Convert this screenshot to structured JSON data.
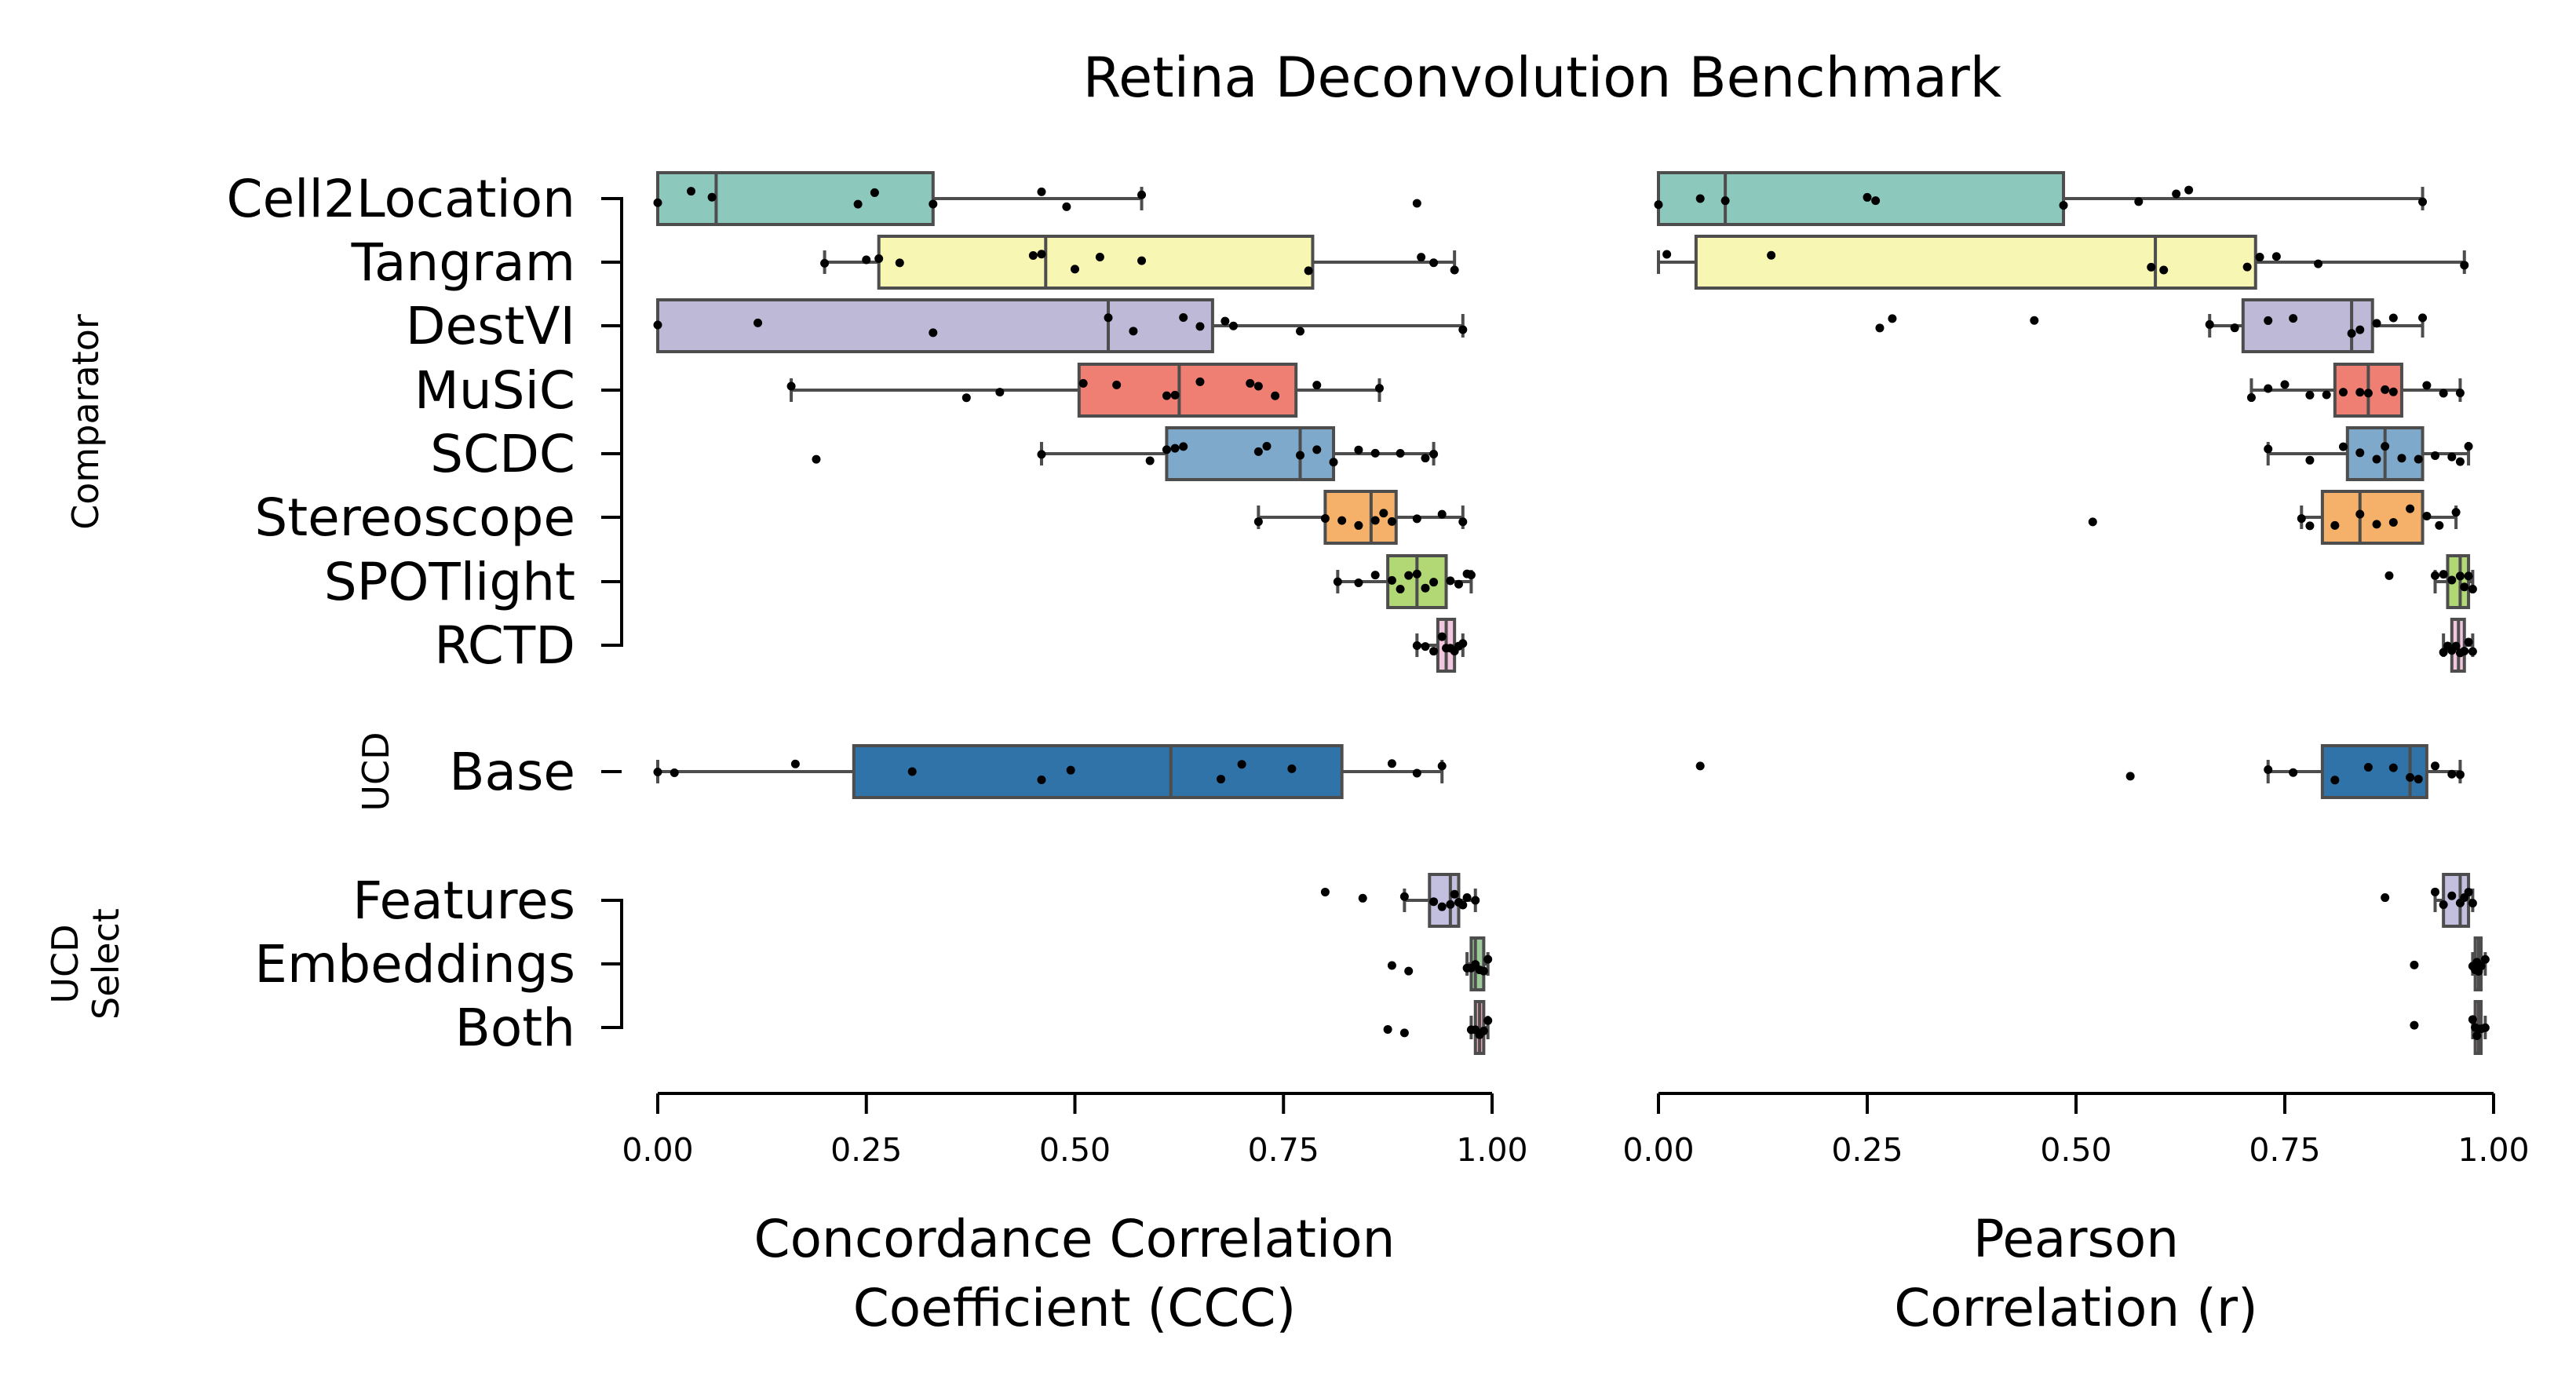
{
  "chart_data": {
    "type": "boxplot",
    "title": "Retina Deconvolution Benchmark",
    "categories": [
      "Cell2Location",
      "Tangram",
      "DestVI",
      "MuSiC",
      "SCDC",
      "Stereoscope",
      "SPOTlight",
      "RCTD",
      "Base",
      "Features",
      "Embeddings",
      "Both"
    ],
    "groups": [
      {
        "label": "Comparator",
        "members": [
          "Cell2Location",
          "Tangram",
          "DestVI",
          "MuSiC",
          "SCDC",
          "Stereoscope",
          "SPOTlight",
          "RCTD"
        ]
      },
      {
        "label": "UCD",
        "members": [
          "Base"
        ]
      },
      {
        "label": "UCD\nSelect",
        "members": [
          "Features",
          "Embeddings",
          "Both"
        ]
      }
    ],
    "colors": {
      "Cell2Location": "#8dc8bc",
      "Tangram": "#f7f6b2",
      "DestVI": "#bdb9d6",
      "MuSiC": "#ef7f73",
      "SCDC": "#7fa9cb",
      "Stereoscope": "#f5b16a",
      "SPOTlight": "#b1d874",
      "RCTD": "#f2c6de",
      "Base": "#2f73a9",
      "Features": "#c3c0df",
      "Embeddings": "#9dc89a",
      "Both": "#f0a9b8"
    },
    "panels": [
      {
        "xlabel": "Concordance Correlation\nCoefficient (CCC)",
        "xlim": [
          0,
          1
        ],
        "xticks": [
          "0.00",
          "0.25",
          "0.50",
          "0.75",
          "1.00"
        ],
        "boxes": [
          {
            "category": "Cell2Location",
            "whislo": 0.0,
            "q1": 0.0,
            "med": 0.07,
            "q3": 0.33,
            "whishi": 0.58,
            "points": [
              0.0,
              0.04,
              0.065,
              0.24,
              0.26,
              0.33,
              0.46,
              0.49,
              0.58,
              0.91
            ]
          },
          {
            "category": "Tangram",
            "whislo": 0.2,
            "q1": 0.265,
            "med": 0.465,
            "q3": 0.785,
            "whishi": 0.955,
            "points": [
              0.2,
              0.25,
              0.265,
              0.29,
              0.45,
              0.46,
              0.5,
              0.53,
              0.58,
              0.78,
              0.915,
              0.93,
              0.955
            ]
          },
          {
            "category": "DestVI",
            "whislo": 0.0,
            "q1": 0.0,
            "med": 0.54,
            "q3": 0.665,
            "whishi": 0.965,
            "points": [
              0.0,
              0.12,
              0.33,
              0.54,
              0.57,
              0.63,
              0.65,
              0.68,
              0.69,
              0.77,
              0.965
            ]
          },
          {
            "category": "MuSiC",
            "whislo": 0.16,
            "q1": 0.505,
            "med": 0.625,
            "q3": 0.765,
            "whishi": 0.865,
            "points": [
              0.16,
              0.37,
              0.41,
              0.51,
              0.55,
              0.61,
              0.62,
              0.65,
              0.71,
              0.72,
              0.74,
              0.79,
              0.865
            ]
          },
          {
            "category": "SCDC",
            "whislo": 0.46,
            "q1": 0.61,
            "med": 0.77,
            "q3": 0.81,
            "whishi": 0.93,
            "points": [
              0.19,
              0.46,
              0.59,
              0.61,
              0.62,
              0.63,
              0.72,
              0.73,
              0.77,
              0.79,
              0.81,
              0.84,
              0.86,
              0.89,
              0.92,
              0.93
            ]
          },
          {
            "category": "Stereoscope",
            "whislo": 0.72,
            "q1": 0.8,
            "med": 0.855,
            "q3": 0.885,
            "whishi": 0.965,
            "points": [
              0.72,
              0.8,
              0.82,
              0.84,
              0.86,
              0.87,
              0.88,
              0.91,
              0.94,
              0.965
            ]
          },
          {
            "category": "SPOTlight",
            "whislo": 0.815,
            "q1": 0.875,
            "med": 0.91,
            "q3": 0.945,
            "whishi": 0.975,
            "points": [
              0.815,
              0.84,
              0.86,
              0.88,
              0.89,
              0.9,
              0.91,
              0.92,
              0.93,
              0.95,
              0.96,
              0.97,
              0.975
            ]
          },
          {
            "category": "RCTD",
            "whislo": 0.91,
            "q1": 0.935,
            "med": 0.945,
            "q3": 0.955,
            "whishi": 0.965,
            "points": [
              0.91,
              0.92,
              0.93,
              0.94,
              0.945,
              0.95,
              0.955,
              0.96,
              0.965
            ]
          },
          {
            "category": "Base",
            "whislo": 0.0,
            "q1": 0.235,
            "med": 0.615,
            "q3": 0.82,
            "whishi": 0.94,
            "points": [
              0.0,
              0.02,
              0.165,
              0.305,
              0.46,
              0.495,
              0.675,
              0.7,
              0.76,
              0.88,
              0.91,
              0.94
            ]
          },
          {
            "category": "Features",
            "whislo": 0.895,
            "q1": 0.925,
            "med": 0.95,
            "q3": 0.96,
            "whishi": 0.98,
            "points": [
              0.8,
              0.845,
              0.895,
              0.93,
              0.94,
              0.95,
              0.955,
              0.96,
              0.965,
              0.97,
              0.98
            ]
          },
          {
            "category": "Embeddings",
            "whislo": 0.97,
            "q1": 0.975,
            "med": 0.98,
            "q3": 0.99,
            "whishi": 0.995,
            "points": [
              0.88,
              0.9,
              0.97,
              0.975,
              0.98,
              0.985,
              0.99,
              0.995
            ]
          },
          {
            "category": "Both",
            "whislo": 0.975,
            "q1": 0.98,
            "med": 0.985,
            "q3": 0.99,
            "whishi": 0.995,
            "points": [
              0.875,
              0.895,
              0.975,
              0.98,
              0.985,
              0.99,
              0.995
            ]
          }
        ]
      },
      {
        "xlabel": "Pearson\nCorrelation (r)",
        "xlim": [
          0,
          1
        ],
        "xticks": [
          "0.00",
          "0.25",
          "0.50",
          "0.75",
          "1.00"
        ],
        "boxes": [
          {
            "category": "Cell2Location",
            "whislo": 0.0,
            "q1": 0.0,
            "med": 0.08,
            "q3": 0.485,
            "whishi": 0.915,
            "points": [
              0.0,
              0.05,
              0.08,
              0.25,
              0.26,
              0.485,
              0.575,
              0.62,
              0.635,
              0.915
            ]
          },
          {
            "category": "Tangram",
            "whislo": 0.0,
            "q1": 0.045,
            "med": 0.595,
            "q3": 0.715,
            "whishi": 0.965,
            "points": [
              0.01,
              0.135,
              0.59,
              0.605,
              0.705,
              0.72,
              0.74,
              0.79,
              0.965
            ]
          },
          {
            "category": "DestVI",
            "whislo": 0.66,
            "q1": 0.7,
            "med": 0.83,
            "q3": 0.855,
            "whishi": 0.915,
            "points": [
              0.265,
              0.28,
              0.45,
              0.66,
              0.69,
              0.73,
              0.76,
              0.83,
              0.84,
              0.86,
              0.88,
              0.915
            ]
          },
          {
            "category": "MuSiC",
            "whislo": 0.71,
            "q1": 0.81,
            "med": 0.85,
            "q3": 0.89,
            "whishi": 0.96,
            "points": [
              0.71,
              0.73,
              0.75,
              0.78,
              0.8,
              0.82,
              0.84,
              0.85,
              0.87,
              0.88,
              0.92,
              0.94,
              0.96
            ]
          },
          {
            "category": "SCDC",
            "whislo": 0.73,
            "q1": 0.825,
            "med": 0.87,
            "q3": 0.915,
            "whishi": 0.97,
            "points": [
              0.73,
              0.78,
              0.82,
              0.84,
              0.86,
              0.87,
              0.89,
              0.91,
              0.93,
              0.95,
              0.96,
              0.97
            ]
          },
          {
            "category": "Stereoscope",
            "whislo": 0.77,
            "q1": 0.795,
            "med": 0.84,
            "q3": 0.915,
            "whishi": 0.955,
            "points": [
              0.52,
              0.77,
              0.78,
              0.81,
              0.84,
              0.86,
              0.88,
              0.9,
              0.92,
              0.935,
              0.955
            ]
          },
          {
            "category": "SPOTlight",
            "whislo": 0.93,
            "q1": 0.945,
            "med": 0.96,
            "q3": 0.97,
            "whishi": 0.975,
            "points": [
              0.875,
              0.93,
              0.94,
              0.95,
              0.96,
              0.965,
              0.97,
              0.975
            ]
          },
          {
            "category": "RCTD",
            "whislo": 0.94,
            "q1": 0.95,
            "med": 0.958,
            "q3": 0.965,
            "whishi": 0.975,
            "points": [
              0.94,
              0.945,
              0.95,
              0.955,
              0.96,
              0.965,
              0.97,
              0.975
            ]
          },
          {
            "category": "Base",
            "whislo": 0.73,
            "q1": 0.795,
            "med": 0.9,
            "q3": 0.92,
            "whishi": 0.96,
            "points": [
              0.05,
              0.565,
              0.73,
              0.76,
              0.81,
              0.85,
              0.88,
              0.9,
              0.91,
              0.93,
              0.95,
              0.96
            ]
          },
          {
            "category": "Features",
            "whislo": 0.93,
            "q1": 0.94,
            "med": 0.96,
            "q3": 0.97,
            "whishi": 0.975,
            "points": [
              0.87,
              0.93,
              0.94,
              0.95,
              0.96,
              0.965,
              0.97,
              0.975
            ]
          },
          {
            "category": "Embeddings",
            "whislo": 0.975,
            "q1": 0.978,
            "med": 0.982,
            "q3": 0.985,
            "whishi": 0.99,
            "points": [
              0.905,
              0.975,
              0.978,
              0.98,
              0.982,
              0.985,
              0.99
            ]
          },
          {
            "category": "Both",
            "whislo": 0.975,
            "q1": 0.978,
            "med": 0.982,
            "q3": 0.985,
            "whishi": 0.99,
            "points": [
              0.905,
              0.975,
              0.978,
              0.98,
              0.982,
              0.985,
              0.99
            ]
          }
        ]
      }
    ]
  }
}
